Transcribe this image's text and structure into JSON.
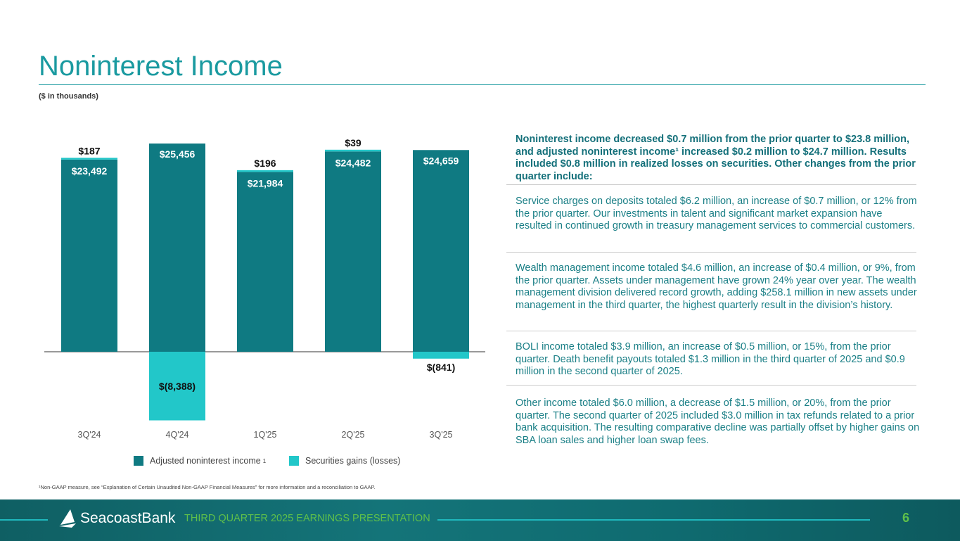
{
  "title": "Noninterest Income",
  "units": "($ in thousands)",
  "chart_data": {
    "type": "bar",
    "stacked": true,
    "categories": [
      "3Q'24",
      "4Q'24",
      "1Q'25",
      "2Q'25",
      "3Q'25"
    ],
    "series": [
      {
        "name": "Adjusted noninterest income",
        "values": [
          23492,
          25456,
          21984,
          24482,
          24659
        ],
        "labels": [
          "$23,492",
          "$25,456",
          "$21,984",
          "$24,482",
          "$24,659"
        ],
        "color": "#0f7a82"
      },
      {
        "name": "Securities gains (losses)",
        "values": [
          187,
          -8388,
          196,
          39,
          -841
        ],
        "labels": [
          "$187",
          "$(8,388)",
          "$196",
          "$39",
          "$(841)"
        ],
        "color": "#22c7c9"
      }
    ],
    "legend_position": "bottom",
    "legend_superscript": "1"
  },
  "lead": "Noninterest income decreased $0.7 million from the prior quarter to $23.8 million, and adjusted noninterest income¹ increased $0.2 million to $24.7 million. Results included $0.8 million in realized losses on securities. Other changes from the prior quarter include:",
  "paragraphs": [
    "Service charges on deposits totaled $6.2 million, an increase of $0.7 million, or 12% from the prior quarter. Our investments in talent and significant market expansion have resulted in continued growth in treasury management services to commercial customers.",
    "Wealth management income totaled $4.6 million, an increase of $0.4 million, or 9%, from the prior quarter. Assets under management have grown 24% year over year. The wealth management division delivered record growth, adding $258.1 million in new assets under management in the third quarter, the highest quarterly result in the division’s history.",
    "BOLI income totaled $3.9 million, an increase of $0.5 million, or 15%, from the prior quarter. Death benefit payouts totaled $1.3 million in the third quarter of 2025 and $0.9 million in the second quarter of 2025.",
    "Other income totaled $6.0 million, a decrease of $1.5 million, or 20%, from the prior quarter. The second quarter of 2025 included $3.0 million in tax refunds related to a prior bank acquisition. The resulting comparative decline was partially offset by higher gains on SBA loan sales and higher loan swap fees."
  ],
  "footnote": "¹Non-GAAP measure, see “Explanation of Certain Unaudited Non-GAAP Financial Measures” for more information and a reconciliation to GAAP.",
  "footer": {
    "logo": "SeacoastBank",
    "title": "THIRD QUARTER 2025 EARNINGS PRESENTATION",
    "page": "6"
  }
}
